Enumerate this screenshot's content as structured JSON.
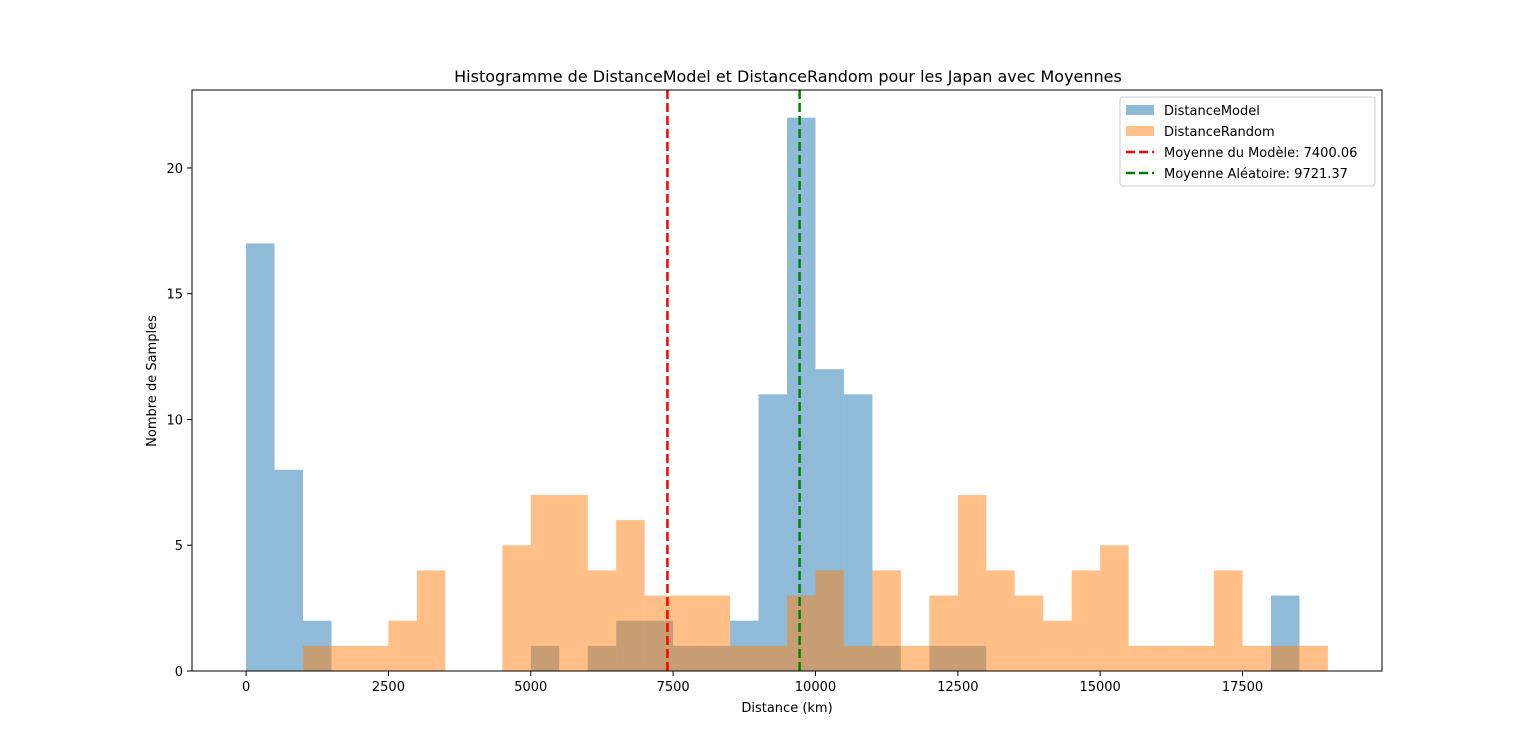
{
  "chart_data": {
    "type": "bar",
    "title": "Histogramme de DistanceModel et DistanceRandom pour les Japan avec Moyennes",
    "xlabel": "Distance (km)",
    "ylabel": "Nombre de Samples",
    "xlim": [
      -950,
      19950
    ],
    "ylim": [
      0,
      23.1
    ],
    "xticks": [
      0,
      2500,
      5000,
      7500,
      10000,
      12500,
      15000,
      17500
    ],
    "xtick_labels": [
      "0",
      "2500",
      "5000",
      "7500",
      "10000",
      "12500",
      "15000",
      "17500"
    ],
    "yticks": [
      0,
      5,
      10,
      15,
      20
    ],
    "ytick_labels": [
      "0",
      "5",
      "10",
      "15",
      "20"
    ],
    "grid": false,
    "legend_position": "top-right",
    "bin_width": 500,
    "series": [
      {
        "name": "DistanceModel",
        "color": "#1f77b4",
        "opacity": 0.5,
        "bins": [
          [
            0,
            17
          ],
          [
            500,
            8
          ],
          [
            1000,
            2
          ],
          [
            5000,
            1
          ],
          [
            6000,
            1
          ],
          [
            6500,
            2
          ],
          [
            7000,
            2
          ],
          [
            7500,
            1
          ],
          [
            8000,
            1
          ],
          [
            8500,
            2
          ],
          [
            9000,
            11
          ],
          [
            9500,
            22
          ],
          [
            10000,
            12
          ],
          [
            10500,
            11
          ],
          [
            11000,
            1
          ],
          [
            12000,
            1
          ],
          [
            12500,
            1
          ],
          [
            18000,
            3
          ]
        ]
      },
      {
        "name": "DistanceRandom",
        "color": "#ff7f0e",
        "opacity": 0.5,
        "bins": [
          [
            1000,
            1
          ],
          [
            1500,
            1
          ],
          [
            2000,
            1
          ],
          [
            2500,
            2
          ],
          [
            3000,
            4
          ],
          [
            4500,
            5
          ],
          [
            5000,
            7
          ],
          [
            5500,
            7
          ],
          [
            6000,
            4
          ],
          [
            6500,
            6
          ],
          [
            7000,
            3
          ],
          [
            7500,
            3
          ],
          [
            8000,
            3
          ],
          [
            8500,
            1
          ],
          [
            9000,
            1
          ],
          [
            9500,
            3
          ],
          [
            10000,
            4
          ],
          [
            10500,
            1
          ],
          [
            11000,
            4
          ],
          [
            11500,
            1
          ],
          [
            12000,
            3
          ],
          [
            12500,
            7
          ],
          [
            13000,
            4
          ],
          [
            13500,
            3
          ],
          [
            14000,
            2
          ],
          [
            14500,
            4
          ],
          [
            15000,
            5
          ],
          [
            15500,
            1
          ],
          [
            16000,
            1
          ],
          [
            16500,
            1
          ],
          [
            17000,
            4
          ],
          [
            17500,
            1
          ],
          [
            18000,
            1
          ],
          [
            18500,
            1
          ]
        ]
      }
    ],
    "mean_lines": [
      {
        "label": "Moyenne du Modèle: 7400.06",
        "x": 7400.06,
        "color": "#ff0000"
      },
      {
        "label": "Moyenne Aléatoire: 9721.37",
        "x": 9721.37,
        "color": "#008000"
      }
    ]
  }
}
